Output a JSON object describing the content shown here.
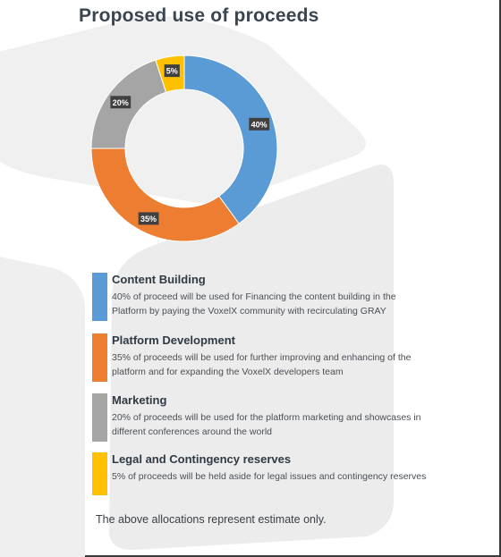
{
  "title": "Proposed use of proceeds",
  "chart_data": {
    "type": "pie",
    "donut": true,
    "categories": [
      "Content Building",
      "Platform Development",
      "Marketing",
      "Legal and Contingency reserves"
    ],
    "values": [
      40,
      35,
      20,
      5
    ],
    "data_labels": [
      "40%",
      "35%",
      "20%",
      "5%"
    ],
    "colors": [
      "#5b9bd5",
      "#ed7d31",
      "#a5a5a5",
      "#ffc000"
    ],
    "title": "Proposed use of proceeds"
  },
  "legend": [
    {
      "heading": "Content Building",
      "description": "40% of proceed will be used for Financing the content building in the Platform by paying the VoxelX community with recirculating GRAY",
      "color": "#5b9bd5"
    },
    {
      "heading": "Platform Development",
      "description": "35% of proceeds will be used for further improving and enhancing of the platform and for expanding the VoxelX developers team",
      "color": "#ed7d31"
    },
    {
      "heading": "Marketing",
      "description": "20% of proceeds will be used for the platform marketing and showcases in different conferences around the world",
      "color": "#a5a5a5"
    },
    {
      "heading": "Legal and Contingency reserves",
      "description": "5% of proceeds will be held aside for legal issues and contingency reserves",
      "color": "#ffc000"
    }
  ],
  "note": "The above allocations represent estimate only."
}
